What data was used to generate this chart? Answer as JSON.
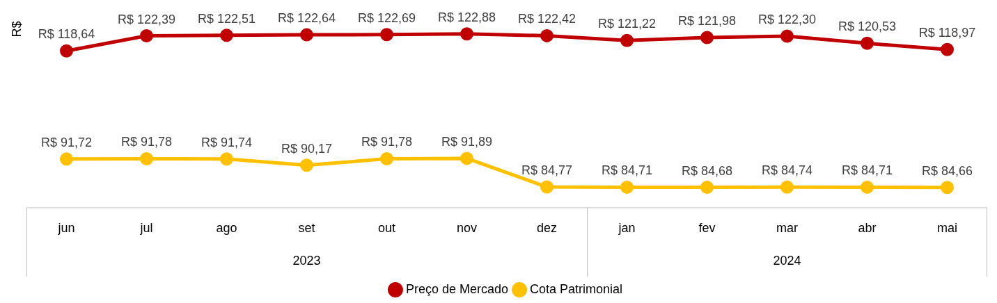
{
  "chart_data": {
    "type": "line",
    "ylabel": "R$",
    "categories": [
      "jun",
      "jul",
      "ago",
      "set",
      "out",
      "nov",
      "dez",
      "jan",
      "fev",
      "mar",
      "abr",
      "mai"
    ],
    "series": [
      {
        "name": "Preço de Mercado",
        "color": "#c00000",
        "values": [
          118.64,
          122.39,
          122.51,
          122.64,
          122.69,
          122.88,
          122.42,
          121.22,
          121.98,
          122.3,
          120.53,
          118.97
        ],
        "value_labels": [
          "R$ 118,64",
          "R$ 122,39",
          "R$ 122,51",
          "R$ 122,64",
          "R$ 122,69",
          "R$ 122,88",
          "R$ 122,42",
          "R$ 121,22",
          "R$ 121,98",
          "R$ 122,30",
          "R$ 120,53",
          "R$ 118,97"
        ]
      },
      {
        "name": "Cota Patrimonial",
        "color": "#ffc000",
        "values": [
          91.72,
          91.78,
          91.74,
          90.17,
          91.78,
          91.89,
          84.77,
          84.71,
          84.68,
          84.74,
          84.71,
          84.66
        ],
        "value_labels": [
          "R$ 91,72",
          "R$ 91,78",
          "R$ 91,74",
          "R$ 90,17",
          "R$ 91,78",
          "R$ 91,89",
          "R$ 84,77",
          "R$ 84,71",
          "R$ 84,68",
          "R$ 84,74",
          "R$ 84,71",
          "R$ 84,66"
        ]
      }
    ],
    "annotations": [
      "2023",
      "2024"
    ],
    "marker": "circle",
    "line_style": "solid",
    "grid": false,
    "legend": "bottom"
  }
}
